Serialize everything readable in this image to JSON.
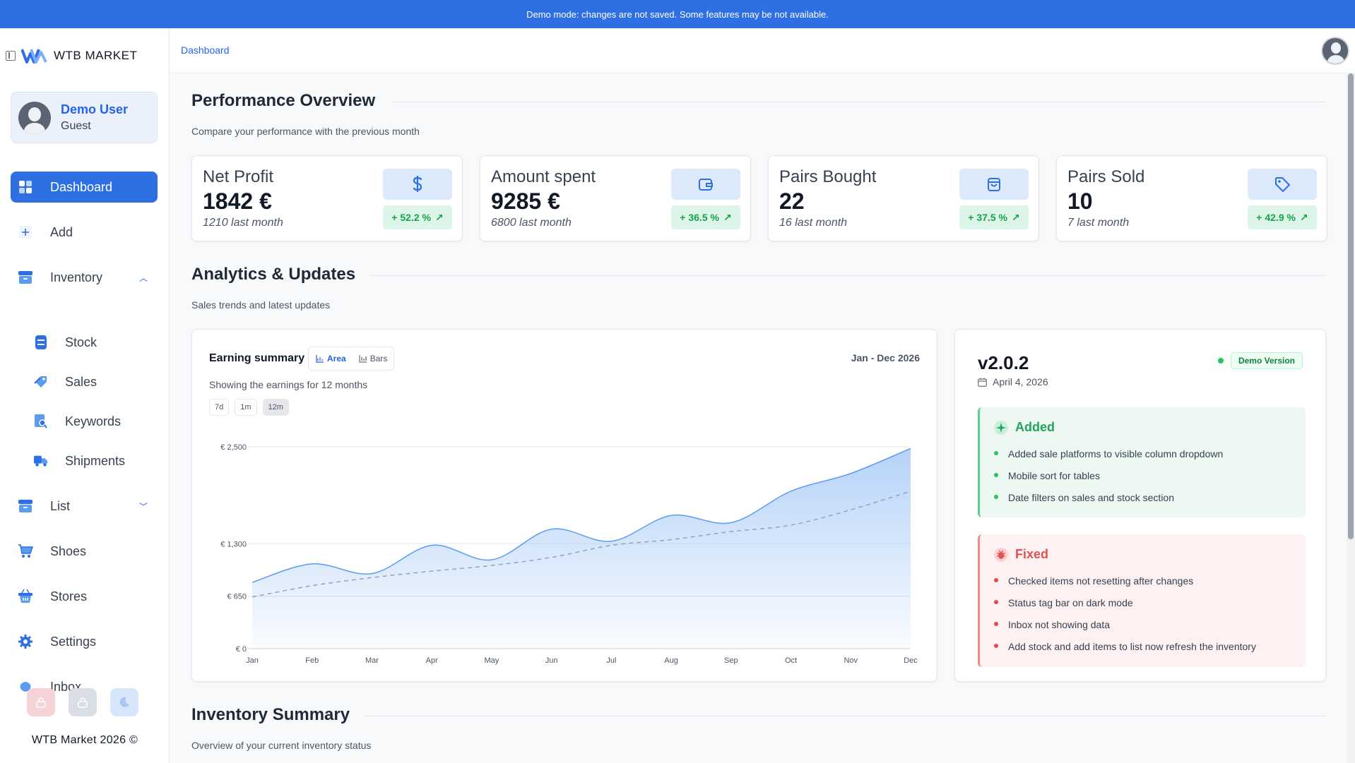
{
  "banner": {
    "text": "Demo mode: changes are not saved. Some features may be not available."
  },
  "brand": {
    "name": "WTB MARKET"
  },
  "user": {
    "name": "Demo User",
    "role": "Guest"
  },
  "sidebar": {
    "items": [
      {
        "label": "Dashboard"
      },
      {
        "label": "Add"
      },
      {
        "label": "Inventory"
      },
      {
        "label": "List"
      },
      {
        "label": "Shoes"
      },
      {
        "label": "Stores"
      },
      {
        "label": "Settings"
      },
      {
        "label": "Inbox"
      }
    ],
    "inventory_sub": [
      {
        "label": "Stock"
      },
      {
        "label": "Sales"
      },
      {
        "label": "Keywords"
      },
      {
        "label": "Shipments"
      }
    ],
    "footer": "WTB Market 2026 ©"
  },
  "topbar": {
    "breadcrumb": "Dashboard"
  },
  "performance": {
    "title": "Performance Overview",
    "subtitle": "Compare your performance with the previous month",
    "stats": [
      {
        "label": "Net Profit",
        "value": "1842 €",
        "last": "1210 last month",
        "pct": "+ 52.2 %",
        "icon": "dollar-icon"
      },
      {
        "label": "Amount spent",
        "value": "9285 €",
        "last": "6800 last month",
        "pct": "+ 36.5 %",
        "icon": "wallet-icon"
      },
      {
        "label": "Pairs Bought",
        "value": "22",
        "last": "16 last month",
        "pct": "+ 37.5 %",
        "icon": "shopping-bag-icon"
      },
      {
        "label": "Pairs Sold",
        "value": "10",
        "last": "7 last month",
        "pct": "+ 42.9 %",
        "icon": "tag-icon"
      }
    ]
  },
  "analytics": {
    "title": "Analytics & Updates",
    "subtitle": "Sales trends and latest updates"
  },
  "earnings": {
    "title": "Earning summary",
    "toggle": {
      "area": "Area",
      "bars": "Bars",
      "selected": "Area"
    },
    "range": "Jan - Dec 2026",
    "subtitle": "Showing the earnings for 12 months",
    "periods": [
      "7d",
      "1m",
      "12m"
    ],
    "selected_period": "12m"
  },
  "chart_data": {
    "type": "area",
    "categories": [
      "Jan",
      "Feb",
      "Mar",
      "Apr",
      "May",
      "Jun",
      "Jul",
      "Aug",
      "Sep",
      "Oct",
      "Nov",
      "Dec"
    ],
    "series": [
      {
        "values": [
          820,
          1050,
          930,
          1280,
          1100,
          1480,
          1330,
          1650,
          1560,
          1950,
          2170,
          2480
        ]
      },
      {
        "values": [
          640,
          780,
          880,
          960,
          1030,
          1130,
          1280,
          1350,
          1450,
          1530,
          1720,
          1950
        ]
      }
    ],
    "yticks": [
      0,
      650,
      1300,
      2500
    ],
    "ytick_labels": [
      "€ 0",
      "€ 650",
      "€ 1,300",
      "€ 2,500"
    ],
    "ylim": [
      0,
      2500
    ],
    "grid": true,
    "colors": {
      "area": "#5b9cf0",
      "line": "#5b9cf0",
      "dashed": "#8aa5c8"
    }
  },
  "changelog": {
    "version": "v2.0.2",
    "date": "April 4, 2026",
    "badge": "Demo Version",
    "added": {
      "title": "Added",
      "items": [
        "Added sale platforms to visible column dropdown",
        "Mobile sort for tables",
        "Date filters on sales and stock section"
      ]
    },
    "fixed": {
      "title": "Fixed",
      "items": [
        "Checked items not resetting after changes",
        "Status tag bar on dark mode",
        "Inbox not showing data",
        "Add stock and add items to list now refresh the inventory"
      ]
    }
  },
  "inventory_summary": {
    "title": "Inventory Summary",
    "subtitle": "Overview of your current inventory status"
  },
  "colors": {
    "accent": "#2f6fe4",
    "success": "#16a34a",
    "danger": "#ef4444"
  }
}
